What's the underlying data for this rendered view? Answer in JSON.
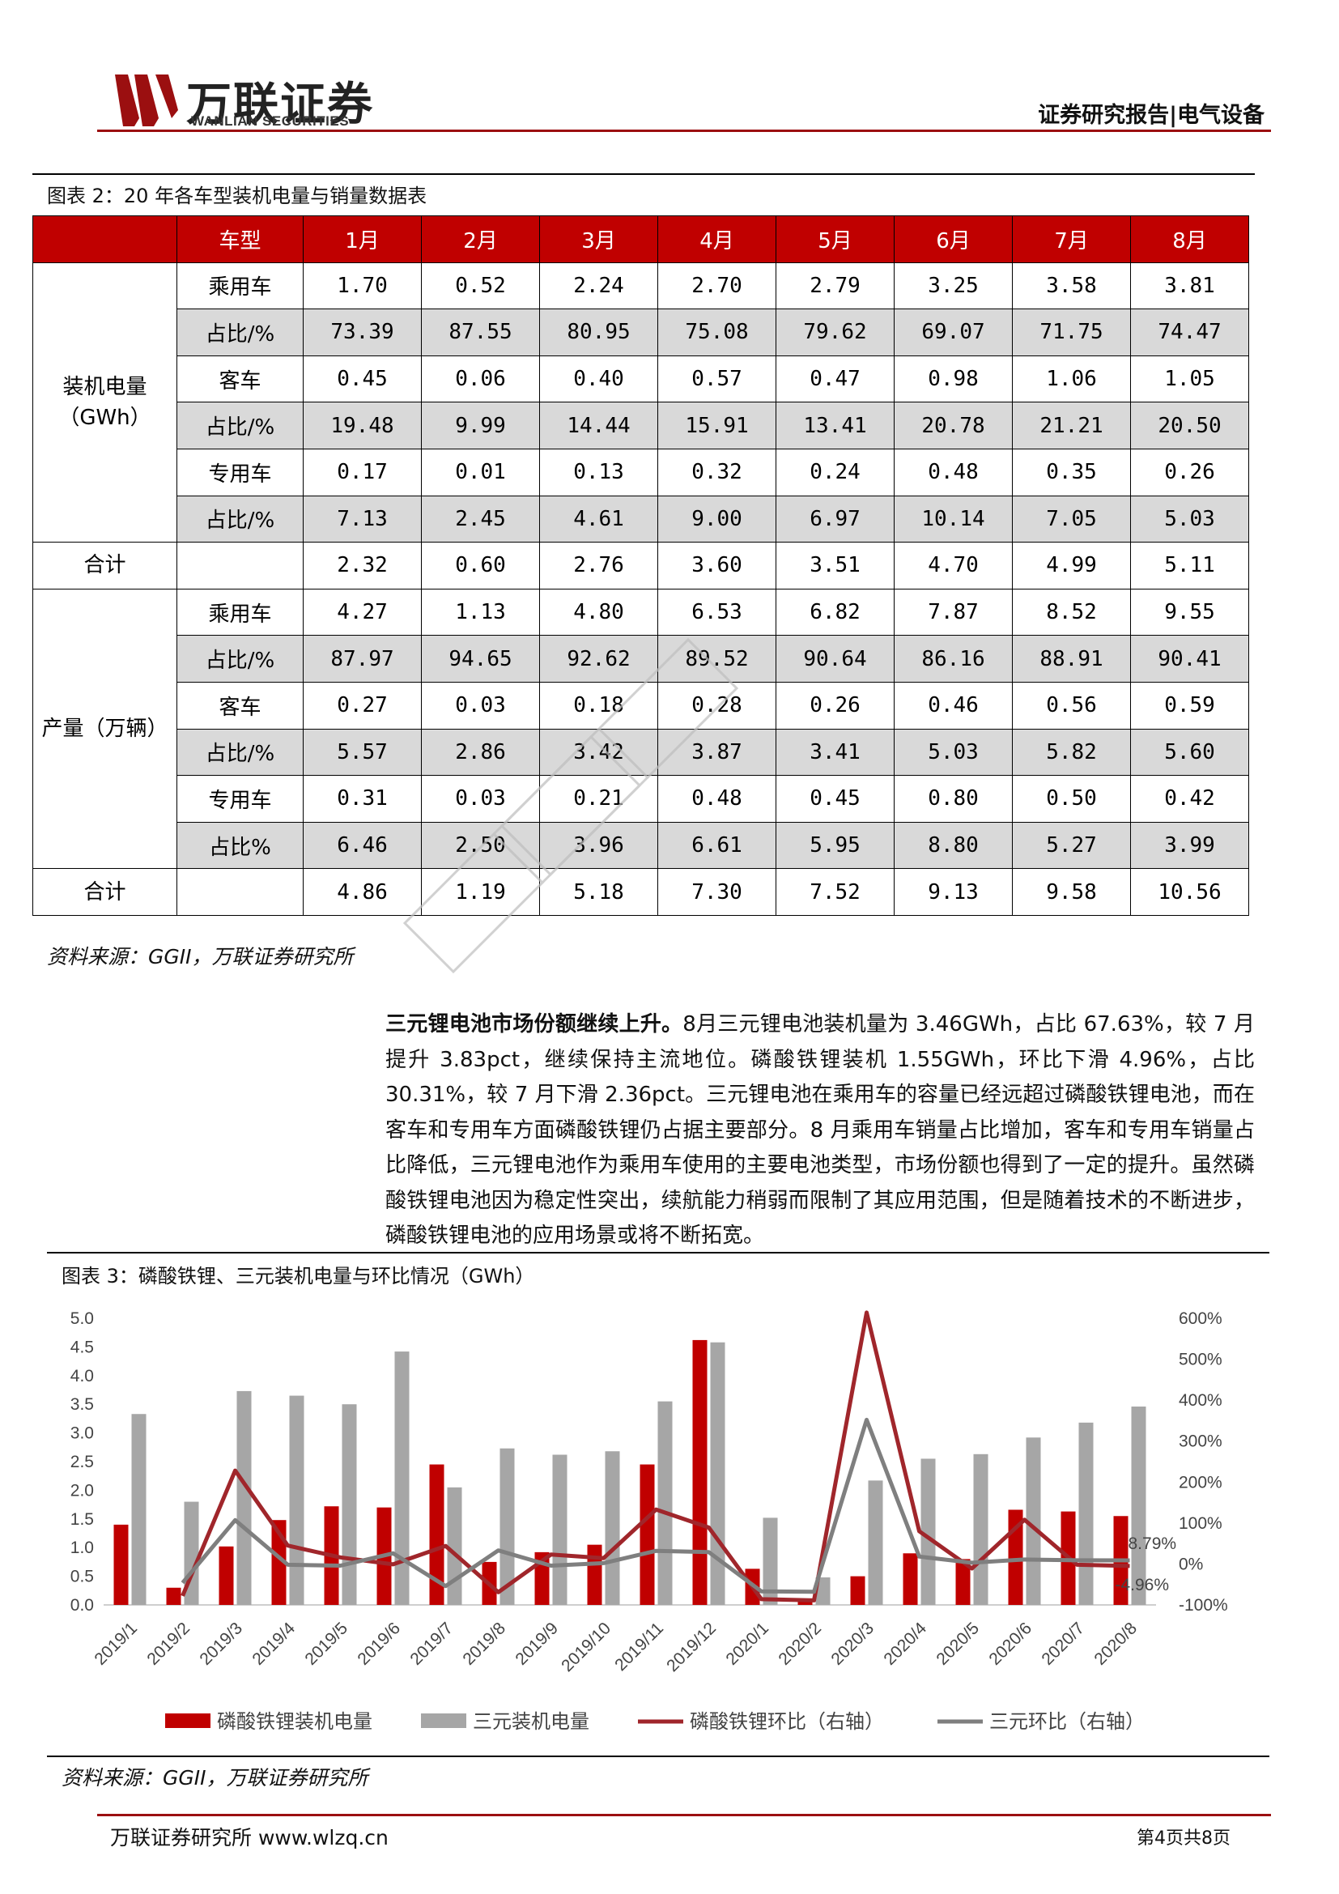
{
  "header": {
    "logo_cn": "万联证券",
    "logo_en": "WANLIAN SECURITIES",
    "report_type": "证券研究报告|电气设备",
    "brand_color": "#9b0f10"
  },
  "table_section": {
    "title": "图表 2：20 年各车型装机电量与销量数据表",
    "header_color": "#c00000",
    "columns": [
      "车型",
      "1月",
      "2月",
      "3月",
      "4月",
      "5月",
      "6月",
      "7月",
      "8月"
    ],
    "groups": [
      {
        "label": "装机电量（GWh）",
        "rows": [
          {
            "label": "乘用车",
            "values": [
              "1.70",
              "0.52",
              "2.24",
              "2.70",
              "2.79",
              "3.25",
              "3.58",
              "3.81"
            ],
            "shaded": false
          },
          {
            "label": "占比/%",
            "values": [
              "73.39",
              "87.55",
              "80.95",
              "75.08",
              "79.62",
              "69.07",
              "71.75",
              "74.47"
            ],
            "shaded": true
          },
          {
            "label": "客车",
            "values": [
              "0.45",
              "0.06",
              "0.40",
              "0.57",
              "0.47",
              "0.98",
              "1.06",
              "1.05"
            ],
            "shaded": false
          },
          {
            "label": "占比/%",
            "values": [
              "19.48",
              "9.99",
              "14.44",
              "15.91",
              "13.41",
              "20.78",
              "21.21",
              "20.50"
            ],
            "shaded": true
          },
          {
            "label": "专用车",
            "values": [
              "0.17",
              "0.01",
              "0.13",
              "0.32",
              "0.24",
              "0.48",
              "0.35",
              "0.26"
            ],
            "shaded": false
          },
          {
            "label": "占比/%",
            "values": [
              "7.13",
              "2.45",
              "4.61",
              "9.00",
              "6.97",
              "10.14",
              "7.05",
              "5.03"
            ],
            "shaded": true
          }
        ],
        "total": {
          "label": "合计",
          "values": [
            "2.32",
            "0.60",
            "2.76",
            "3.60",
            "3.51",
            "4.70",
            "4.99",
            "5.11"
          ]
        }
      },
      {
        "label": "产量（万辆）",
        "rows": [
          {
            "label": "乘用车",
            "values": [
              "4.27",
              "1.13",
              "4.80",
              "6.53",
              "6.82",
              "7.87",
              "8.52",
              "9.55"
            ],
            "shaded": false
          },
          {
            "label": "占比/%",
            "values": [
              "87.97",
              "94.65",
              "92.62",
              "89.52",
              "90.64",
              "86.16",
              "88.91",
              "90.41"
            ],
            "shaded": true
          },
          {
            "label": "客车",
            "values": [
              "0.27",
              "0.03",
              "0.18",
              "0.28",
              "0.26",
              "0.46",
              "0.56",
              "0.59"
            ],
            "shaded": false
          },
          {
            "label": "占比/%",
            "values": [
              "5.57",
              "2.86",
              "3.42",
              "3.87",
              "3.41",
              "5.03",
              "5.82",
              "5.60"
            ],
            "shaded": true
          },
          {
            "label": "专用车",
            "values": [
              "0.31",
              "0.03",
              "0.21",
              "0.48",
              "0.45",
              "0.80",
              "0.50",
              "0.42"
            ],
            "shaded": false
          },
          {
            "label": "占比%",
            "values": [
              "6.46",
              "2.50",
              "3.96",
              "6.61",
              "5.95",
              "8.80",
              "5.27",
              "3.99"
            ],
            "shaded": true
          }
        ],
        "total": {
          "label": "合计",
          "values": [
            "4.86",
            "1.19",
            "5.18",
            "7.30",
            "7.52",
            "9.13",
            "9.58",
            "10.56"
          ]
        }
      }
    ],
    "source": "资料来源：GGII，万联证券研究所"
  },
  "paragraph": {
    "lead": "三元锂电池市场份额继续上升。",
    "body": "8月三元锂电池装机量为 3.46GWh，占比 67.63%，较 7 月提升 3.83pct，继续保持主流地位。磷酸铁锂装机 1.55GWh，环比下滑 4.96%，占比 30.31%，较 7 月下滑 2.36pct。三元锂电池在乘用车的容量已经远超过磷酸铁锂电池，而在客车和专用车方面磷酸铁锂仍占据主要部分。8 月乘用车销量占比增加，客车和专用车销量占比降低，三元锂电池作为乘用车使用的主要电池类型，市场份额也得到了一定的提升。虽然磷酸铁锂电池因为稳定性突出，续航能力稍弱而限制了其应用范围，但是随着技术的不断进步，磷酸铁锂电池的应用场景或将不断拓宽。"
  },
  "chart_section": {
    "title": "图表 3：磷酸铁锂、三元装机电量与环比情况（GWh）",
    "source": "资料来源：GGII，万联证券研究所"
  },
  "chart_data": {
    "type": "bar",
    "categories": [
      "2019/1",
      "2019/2",
      "2019/3",
      "2019/4",
      "2019/5",
      "2019/6",
      "2019/7",
      "2019/8",
      "2019/9",
      "2019/10",
      "2019/11",
      "2019/12",
      "2020/1",
      "2020/2",
      "2020/3",
      "2020/4",
      "2020/5",
      "2020/6",
      "2020/7",
      "2020/8"
    ],
    "series": [
      {
        "name": "磷酸铁锂装机电量",
        "kind": "bar",
        "axis": "left",
        "color": "#c00000",
        "values": [
          1.4,
          0.3,
          1.02,
          1.48,
          1.72,
          1.7,
          2.45,
          0.75,
          0.92,
          1.05,
          2.45,
          4.62,
          0.63,
          0.07,
          0.5,
          0.9,
          0.8,
          1.66,
          1.63,
          1.55
        ]
      },
      {
        "name": "三元装机电量",
        "kind": "bar",
        "axis": "left",
        "color": "#a6a6a6",
        "values": [
          3.33,
          1.8,
          3.73,
          3.65,
          3.5,
          4.42,
          2.05,
          2.73,
          2.62,
          2.68,
          3.55,
          4.58,
          1.52,
          0.48,
          2.17,
          2.55,
          2.63,
          2.92,
          3.18,
          3.46
        ]
      },
      {
        "name": "磷酸铁锂环比（右轴）",
        "kind": "line",
        "axis": "right",
        "color": "#a0262b",
        "values": [
          null,
          -78,
          228,
          45,
          16,
          -1,
          44,
          -69,
          23,
          14,
          133,
          89,
          -86,
          -89,
          614,
          80,
          -11,
          108,
          -2,
          -4.96
        ]
      },
      {
        "name": "三元环比（右轴）",
        "kind": "line",
        "axis": "right",
        "color": "#7f7f7f",
        "values": [
          null,
          -46,
          107,
          -2,
          -4,
          26,
          -54,
          33,
          -4,
          2,
          32,
          29,
          -67,
          -68,
          352,
          18,
          3,
          11,
          9,
          8.79
        ]
      }
    ],
    "annotations": [
      "8.79%",
      "-4.96%"
    ],
    "ylim_left": [
      0,
      5.0
    ],
    "yticks_left": [
      "0.0",
      "0.5",
      "1.0",
      "1.5",
      "2.0",
      "2.5",
      "3.0",
      "3.5",
      "4.0",
      "4.5",
      "5.0"
    ],
    "ylim_right": [
      -100,
      600
    ],
    "yticks_right": [
      "-100%",
      "0%",
      "100%",
      "200%",
      "300%",
      "400%",
      "500%",
      "600%"
    ],
    "legend_position": "bottom",
    "grid": false
  },
  "footer": {
    "left": "万联证券研究所 www.wlzq.cn",
    "right": "第4页共8页"
  }
}
